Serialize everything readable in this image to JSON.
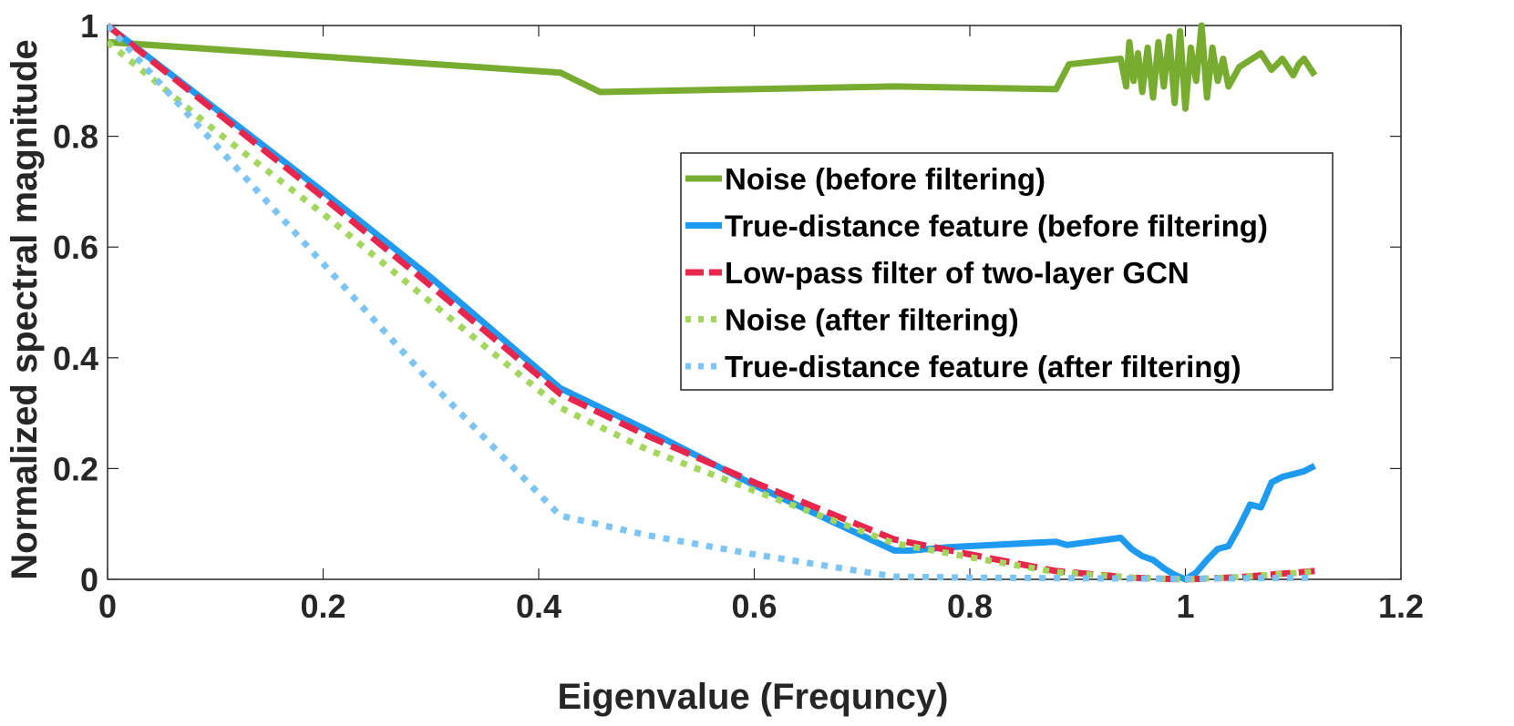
{
  "chart_data": {
    "type": "line",
    "title": "",
    "xlabel": "Eigenvalue (Frequncy)",
    "ylabel": "Normalized spectral magnitude",
    "xlim": [
      0,
      1.2
    ],
    "ylim": [
      0,
      1
    ],
    "xticks": [
      0,
      0.2,
      0.4,
      0.6,
      0.8,
      1,
      1.2
    ],
    "xtick_labels": [
      "0",
      "0.2",
      "0.4",
      "0.6",
      "0.8",
      "1",
      "1.2"
    ],
    "yticks": [
      0,
      0.2,
      0.4,
      0.6,
      0.8,
      1
    ],
    "ytick_labels": [
      "0",
      "0.2",
      "0.4",
      "0.6",
      "0.8",
      "1"
    ],
    "grid": false,
    "legend_position": "center-right",
    "series": [
      {
        "name": "Noise (before filtering)",
        "color": "#77AC30",
        "style": "solid",
        "x": [
          0,
          0.42,
          0.457,
          0.73,
          0.88,
          0.892,
          0.94,
          0.945,
          0.948,
          0.952,
          0.956,
          0.96,
          0.965,
          0.97,
          0.975,
          0.98,
          0.985,
          0.99,
          0.995,
          1.0,
          1.005,
          1.01,
          1.015,
          1.02,
          1.025,
          1.03,
          1.035,
          1.04,
          1.05,
          1.07,
          1.08,
          1.09,
          1.1,
          1.105,
          1.11,
          1.12
        ],
        "y": [
          0.97,
          0.915,
          0.88,
          0.89,
          0.885,
          0.93,
          0.94,
          0.89,
          0.97,
          0.9,
          0.95,
          0.88,
          0.96,
          0.87,
          0.97,
          0.89,
          0.98,
          0.86,
          0.99,
          0.85,
          0.96,
          0.9,
          1.0,
          0.87,
          0.96,
          0.9,
          0.94,
          0.89,
          0.925,
          0.95,
          0.92,
          0.94,
          0.91,
          0.93,
          0.94,
          0.91
        ]
      },
      {
        "name": "True-distance feature (before filtering)",
        "color": "#1E9BF0",
        "style": "solid",
        "x": [
          0,
          0.1,
          0.2,
          0.3,
          0.42,
          0.5,
          0.6,
          0.73,
          0.745,
          0.78,
          0.88,
          0.89,
          0.94,
          0.95,
          0.96,
          0.97,
          0.98,
          0.99,
          1.0,
          1.01,
          1.02,
          1.03,
          1.04,
          1.05,
          1.06,
          1.07,
          1.08,
          1.09,
          1.1,
          1.11,
          1.12
        ],
        "y": [
          1.0,
          0.85,
          0.7,
          0.545,
          0.345,
          0.27,
          0.17,
          0.052,
          0.052,
          0.058,
          0.068,
          0.062,
          0.075,
          0.055,
          0.042,
          0.035,
          0.02,
          0.008,
          0.0,
          0.012,
          0.035,
          0.055,
          0.06,
          0.095,
          0.135,
          0.13,
          0.175,
          0.185,
          0.19,
          0.195,
          0.205
        ]
      },
      {
        "name": "Low-pass filter of two-layer GCN",
        "color": "#E8254C",
        "style": "dashed",
        "x": [
          0,
          0.1,
          0.2,
          0.3,
          0.42,
          0.5,
          0.6,
          0.73,
          0.8,
          0.88,
          0.95,
          1.0,
          1.05,
          1.12
        ],
        "y": [
          1.0,
          0.845,
          0.69,
          0.53,
          0.335,
          0.26,
          0.175,
          0.072,
          0.045,
          0.015,
          0.003,
          0.0,
          0.004,
          0.015
        ]
      },
      {
        "name": "Noise (after filtering)",
        "color": "#A3D65C",
        "style": "dotted",
        "x": [
          0,
          0.1,
          0.2,
          0.3,
          0.42,
          0.5,
          0.6,
          0.73,
          0.8,
          0.88,
          0.95,
          1.0,
          1.05,
          1.12
        ],
        "y": [
          0.97,
          0.81,
          0.66,
          0.5,
          0.31,
          0.235,
          0.16,
          0.065,
          0.04,
          0.013,
          0.003,
          0.0,
          0.004,
          0.014
        ]
      },
      {
        "name": "True-distance feature (after filtering)",
        "color": "#7CC4F4",
        "style": "dotted",
        "x": [
          0,
          0.1,
          0.2,
          0.3,
          0.42,
          0.5,
          0.6,
          0.73,
          0.8,
          0.9,
          1.0,
          1.12
        ],
        "y": [
          1.0,
          0.785,
          0.57,
          0.355,
          0.115,
          0.08,
          0.045,
          0.005,
          0.003,
          0.002,
          0.001,
          0.003
        ]
      }
    ]
  }
}
